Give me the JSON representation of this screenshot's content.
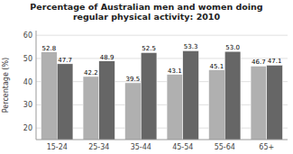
{
  "chart_data": {
    "type": "bar",
    "title": "Percentage of Australian men and women doing\nregular physical activity: 2010",
    "ylabel": "Percentage (%)",
    "categories": [
      "15-24",
      "25-34",
      "35-44",
      "45-54",
      "55-64",
      "65+"
    ],
    "series": [
      {
        "color": "#b0b0b0",
        "values": [
          52.8,
          42.2,
          39.5,
          43.1,
          45.1,
          46.7
        ]
      },
      {
        "color": "#666666",
        "values": [
          47.7,
          48.9,
          52.5,
          53.3,
          53.0,
          47.1
        ],
        "value_labels": [
          "47.7",
          "48.9",
          "52.5",
          "53.3",
          "53.0",
          "47.1"
        ]
      }
    ],
    "ylim": [
      15,
      62
    ],
    "yticks": [
      20,
      30,
      40,
      50,
      60
    ],
    "grid": true,
    "data_labels": true
  }
}
